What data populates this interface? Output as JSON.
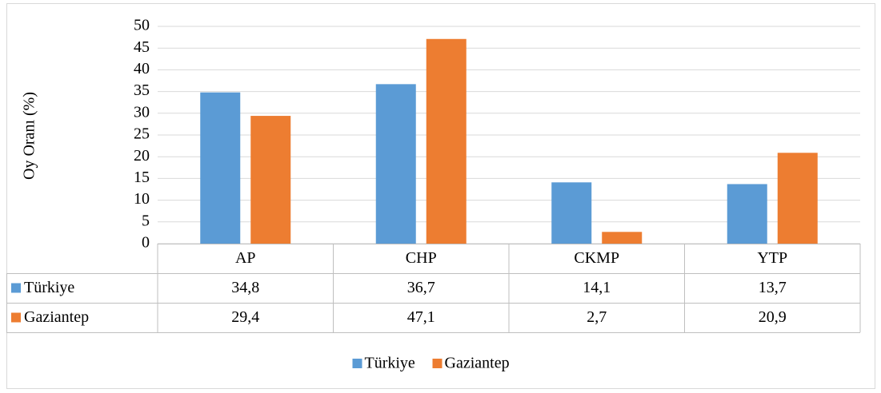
{
  "chart_data": {
    "type": "bar",
    "y_label": "Oy Oranı (%)",
    "categories": [
      "AP",
      "CHP",
      "CKMP",
      "YTP"
    ],
    "series": [
      {
        "name": "Türkiye",
        "color": "#5b9bd5",
        "values": [
          34.8,
          36.7,
          14.1,
          13.7
        ],
        "value_labels": [
          "34,8",
          "36,7",
          "14,1",
          "13,7"
        ]
      },
      {
        "name": "Gaziantep",
        "color": "#ed7d31",
        "values": [
          29.4,
          47.1,
          2.7,
          20.9
        ],
        "value_labels": [
          "29,4",
          "47,1",
          "2,7",
          "20,9"
        ]
      }
    ],
    "ylim": [
      0,
      50
    ],
    "yticks": [
      0,
      5,
      10,
      15,
      20,
      25,
      30,
      35,
      40,
      45,
      50
    ],
    "grid": true,
    "legend": "bottom"
  }
}
